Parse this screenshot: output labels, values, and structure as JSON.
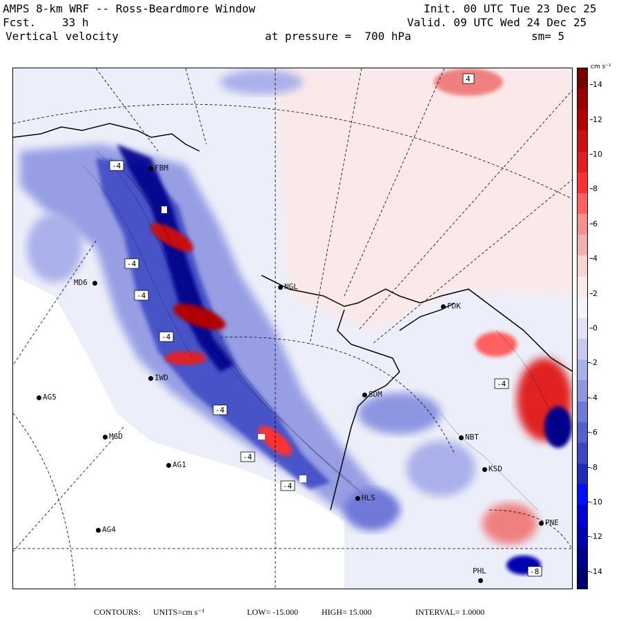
{
  "header": {
    "title": "AMPS 8-km WRF -- Ross-Beardmore Window",
    "forecast_label": "Fcst.",
    "forecast_hours": "33 h",
    "variable": "Vertical velocity",
    "init": "Init. 00 UTC Tue 23 Dec 25",
    "valid": "Valid. 09 UTC Wed 24 Dec 25",
    "pressure_level": "at pressure =  700 hPa",
    "smoothing": "sm= 5"
  },
  "colorbar": {
    "units": "cm s⁻¹",
    "ticks": [
      "14",
      "12",
      "10",
      "8",
      "6",
      "4",
      "2",
      "0",
      "-2",
      "-4",
      "-6",
      "-8",
      "-10",
      "-12",
      "-14"
    ],
    "colors": [
      "#7a0000",
      "#9a0000",
      "#b30000",
      "#cc1010",
      "#e02020",
      "#ff3030",
      "#ff6060",
      "#f59090",
      "#f4b0b0",
      "#f8d4d4",
      "#fbeaea",
      "#f4f4fa",
      "#e2e2f6",
      "#c8c8f0",
      "#aab0ea",
      "#8e96e2",
      "#7078d8",
      "#5460cc",
      "#3a46c2",
      "#1e2cb8",
      "#0010ff",
      "#0000d8",
      "#0000b0",
      "#00008c",
      "#00006c"
    ],
    "range": [
      -15,
      15
    ]
  },
  "stations": [
    {
      "id": "MD6",
      "label": "MD6"
    },
    {
      "id": "NGL",
      "label": "NGL"
    },
    {
      "id": "FDK",
      "label": "FDK"
    },
    {
      "id": "IWD",
      "label": "IWD"
    },
    {
      "id": "AG5",
      "label": "AG5"
    },
    {
      "id": "SDM",
      "label": "SDM"
    },
    {
      "id": "MGD",
      "label": "MGD"
    },
    {
      "id": "NBT",
      "label": "NBT"
    },
    {
      "id": "AG1",
      "label": "AG1"
    },
    {
      "id": "KSD",
      "label": "KSD"
    },
    {
      "id": "HLS",
      "label": "HLS"
    },
    {
      "id": "AG4",
      "label": "AG4"
    },
    {
      "id": "PHL",
      "label": "PHL"
    },
    {
      "id": "PNE",
      "label": "PNE"
    },
    {
      "id": "FBM",
      "label": "FBM"
    }
  ],
  "map_labels": [
    "-4",
    "-4",
    "-4",
    "-4",
    "-4",
    "-4",
    "-4",
    "-4",
    "4",
    "-8"
  ],
  "footer": {
    "contours": "CONTOURS:",
    "units": "UNITS=cm s⁻¹",
    "low": "LOW= -15.000",
    "high": "HIGH=  15.000",
    "interval": "INTERVAL=   1.0000"
  }
}
